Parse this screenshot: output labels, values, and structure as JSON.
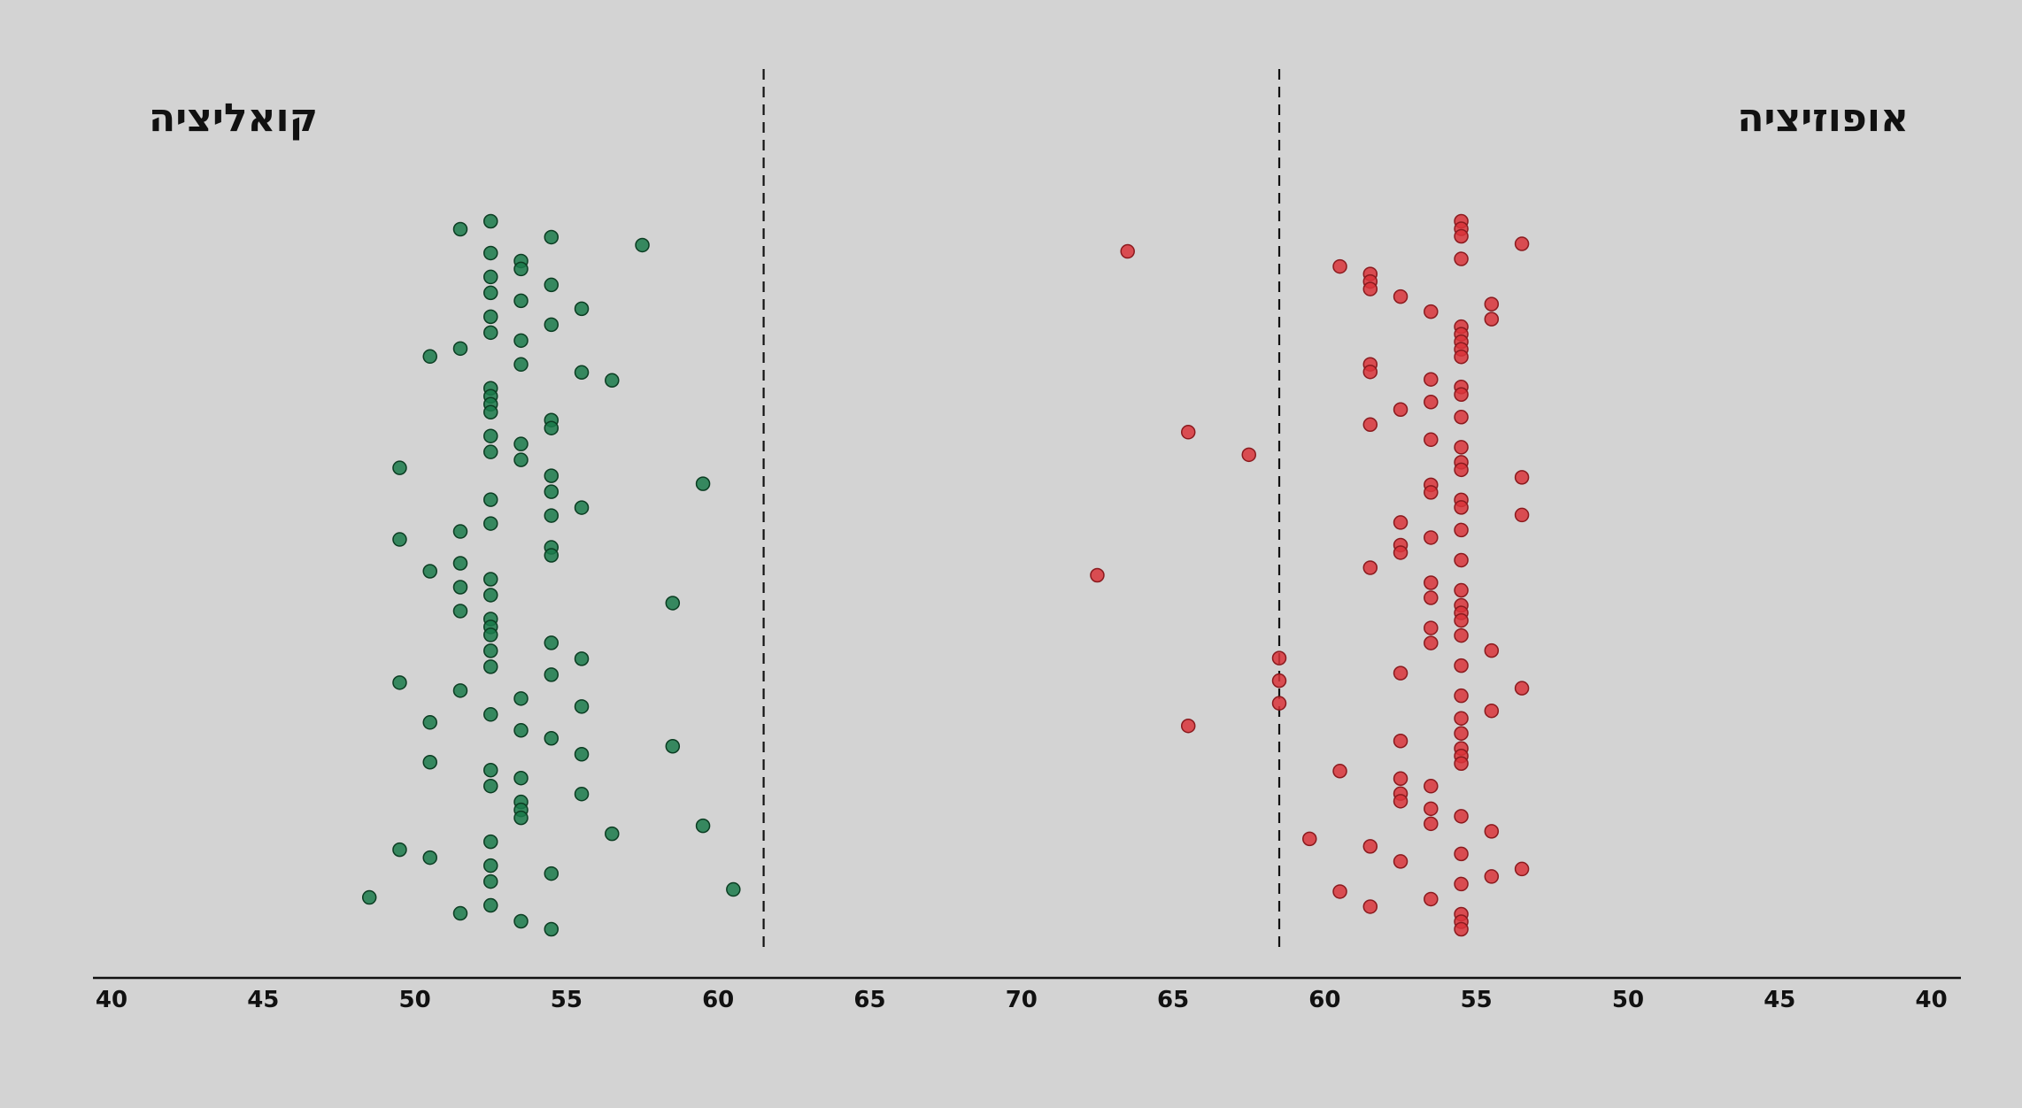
{
  "chart_data": {
    "type": "scatter",
    "orientation": "horizontal strip, mirrored axis",
    "groups": [
      {
        "label": "קואליציה",
        "color": "#1a7a4a",
        "side": "left",
        "threshold": 61,
        "values": [
          52,
          51,
          54,
          57,
          52,
          53,
          53,
          52,
          54,
          52,
          53,
          55,
          52,
          54,
          52,
          53,
          51,
          50,
          53,
          55,
          56,
          52,
          52,
          52,
          52,
          54,
          54,
          52,
          53,
          52,
          53,
          49,
          54,
          59,
          54,
          52,
          55,
          54,
          52,
          51,
          49,
          54,
          54,
          51,
          50,
          52,
          51,
          52,
          58,
          51,
          52,
          52,
          52,
          54,
          52,
          55,
          52,
          54,
          49,
          51,
          53,
          55,
          52,
          50,
          53,
          54,
          58,
          55,
          50,
          52,
          53,
          52,
          55,
          53,
          53,
          53,
          59,
          56,
          52,
          49,
          50,
          52,
          54,
          52,
          60,
          48,
          52,
          51,
          53,
          54
        ]
      },
      {
        "label": "אופוזיציה",
        "color": "#d9343a",
        "side": "right",
        "threshold": 61,
        "values": [
          55,
          55,
          55,
          53,
          66,
          55,
          59,
          58,
          58,
          58,
          57,
          54,
          56,
          54,
          55,
          55,
          55,
          55,
          55,
          58,
          58,
          56,
          55,
          55,
          56,
          57,
          55,
          58,
          64,
          56,
          55,
          62,
          55,
          55,
          53,
          56,
          56,
          55,
          55,
          53,
          57,
          55,
          56,
          57,
          57,
          55,
          58,
          67,
          56,
          55,
          56,
          55,
          55,
          55,
          56,
          55,
          56,
          54,
          61,
          55,
          57,
          61,
          53,
          55,
          61,
          54,
          55,
          64,
          55,
          57,
          55,
          55,
          55,
          59,
          57,
          56,
          57,
          57,
          56,
          55,
          56,
          54,
          60,
          58,
          55,
          57,
          53,
          54,
          55,
          59,
          56,
          58,
          55,
          55,
          55
        ]
      }
    ],
    "x_axis_ticks": [
      "40",
      "45",
      "50",
      "55",
      "60",
      "65",
      "70",
      "65",
      "60",
      "55",
      "50",
      "45",
      "40"
    ],
    "grid": false
  }
}
